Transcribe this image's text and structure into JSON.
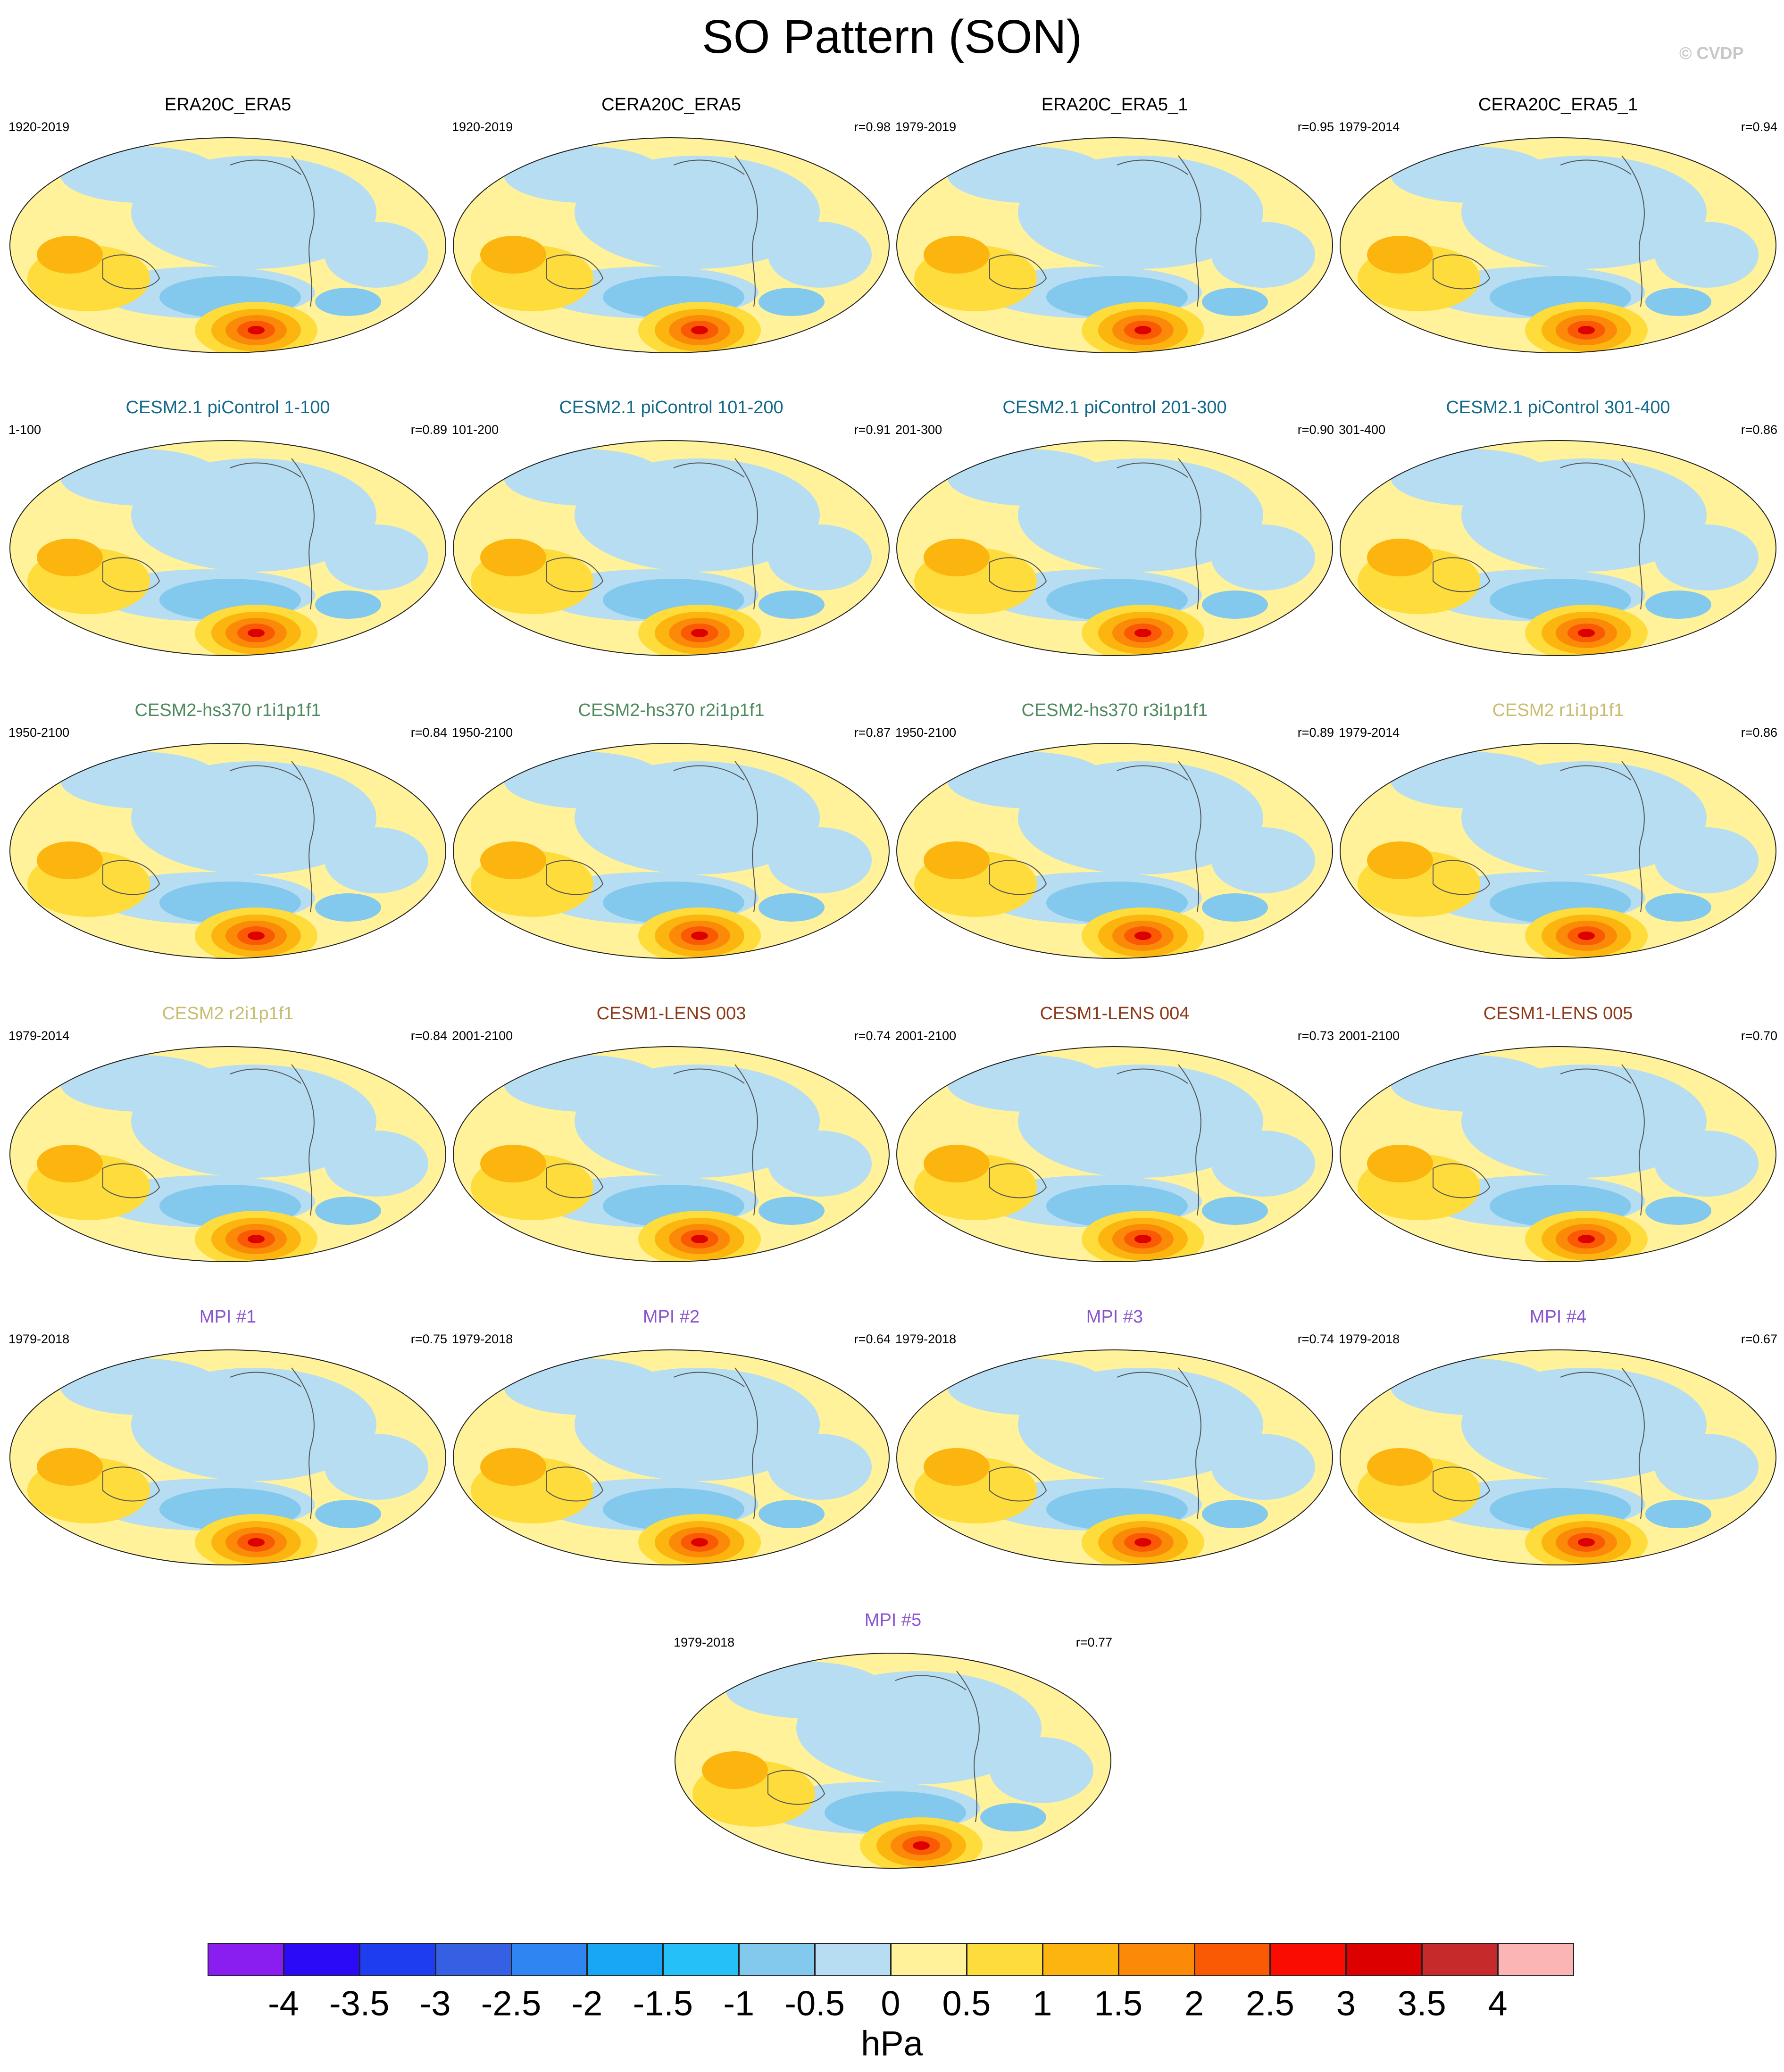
{
  "figure": {
    "title": "SO Pattern (SON)",
    "copyright": "© CVDP"
  },
  "chart_data": {
    "type": "heatmap",
    "title": "SO Pattern (SON)",
    "units": "hPa",
    "colorbar": {
      "labels": [
        "-4",
        "-3.5",
        "-3",
        "-2.5",
        "-2",
        "-1.5",
        "-1",
        "-0.5",
        "0",
        "0.5",
        "1",
        "1.5",
        "2",
        "2.5",
        "3",
        "3.5",
        "4"
      ],
      "colors": [
        "#8a1ef0",
        "#2b0af5",
        "#1e3cf0",
        "#3660e3",
        "#2f86f2",
        "#17a7f5",
        "#25c0f8",
        "#83c9ed",
        "#b6ddf2",
        "#fff29a",
        "#fedc3b",
        "#fcb40e",
        "#fc8a09",
        "#fb5a05",
        "#fb0c02",
        "#dc0000",
        "#c62a2a",
        "#fbb5b5"
      ]
    },
    "panels": [
      {
        "title": "ERA20C_ERA5",
        "period": "1920-2019",
        "r": "",
        "title_color": "#000000"
      },
      {
        "title": "CERA20C_ERA5",
        "period": "1920-2019",
        "r": "r=0.98",
        "title_color": "#000000"
      },
      {
        "title": "ERA20C_ERA5_1",
        "period": "1979-2019",
        "r": "r=0.95",
        "title_color": "#000000"
      },
      {
        "title": "CERA20C_ERA5_1",
        "period": "1979-2014",
        "r": "r=0.94",
        "title_color": "#000000"
      },
      {
        "title": "CESM2.1 piControl 1-100",
        "period": "1-100",
        "r": "r=0.89",
        "title_color": "#13698a"
      },
      {
        "title": "CESM2.1 piControl 101-200",
        "period": "101-200",
        "r": "r=0.91",
        "title_color": "#13698a"
      },
      {
        "title": "CESM2.1 piControl 201-300",
        "period": "201-300",
        "r": "r=0.90",
        "title_color": "#13698a"
      },
      {
        "title": "CESM2.1 piControl 301-400",
        "period": "301-400",
        "r": "r=0.86",
        "title_color": "#13698a"
      },
      {
        "title": "CESM2-hs370 r1i1p1f1",
        "period": "1950-2100",
        "r": "r=0.84",
        "title_color": "#4e8a5e"
      },
      {
        "title": "CESM2-hs370 r2i1p1f1",
        "period": "1950-2100",
        "r": "r=0.87",
        "title_color": "#4e8a5e"
      },
      {
        "title": "CESM2-hs370 r3i1p1f1",
        "period": "1950-2100",
        "r": "r=0.89",
        "title_color": "#4e8a5e"
      },
      {
        "title": "CESM2 r1i1p1f1",
        "period": "1979-2014",
        "r": "r=0.86",
        "title_color": "#c8bc6e"
      },
      {
        "title": "CESM2 r2i1p1f1",
        "period": "1979-2014",
        "r": "r=0.84",
        "title_color": "#c8bc6e"
      },
      {
        "title": "CESM1-LENS 003",
        "period": "2001-2100",
        "r": "r=0.74",
        "title_color": "#8b3a1a"
      },
      {
        "title": "CESM1-LENS 004",
        "period": "2001-2100",
        "r": "r=0.73",
        "title_color": "#8b3a1a"
      },
      {
        "title": "CESM1-LENS 005",
        "period": "2001-2100",
        "r": "r=0.70",
        "title_color": "#8b3a1a"
      },
      {
        "title": "MPI #1",
        "period": "1979-2018",
        "r": "r=0.75",
        "title_color": "#8a55cc"
      },
      {
        "title": "MPI #2",
        "period": "1979-2018",
        "r": "r=0.64",
        "title_color": "#8a55cc"
      },
      {
        "title": "MPI #3",
        "period": "1979-2018",
        "r": "r=0.74",
        "title_color": "#8a55cc"
      },
      {
        "title": "MPI #4",
        "period": "1979-2018",
        "r": "r=0.67",
        "title_color": "#8a55cc"
      },
      {
        "title": "MPI #5",
        "period": "1979-2018",
        "r": "r=0.77",
        "title_color": "#8a55cc"
      }
    ]
  }
}
